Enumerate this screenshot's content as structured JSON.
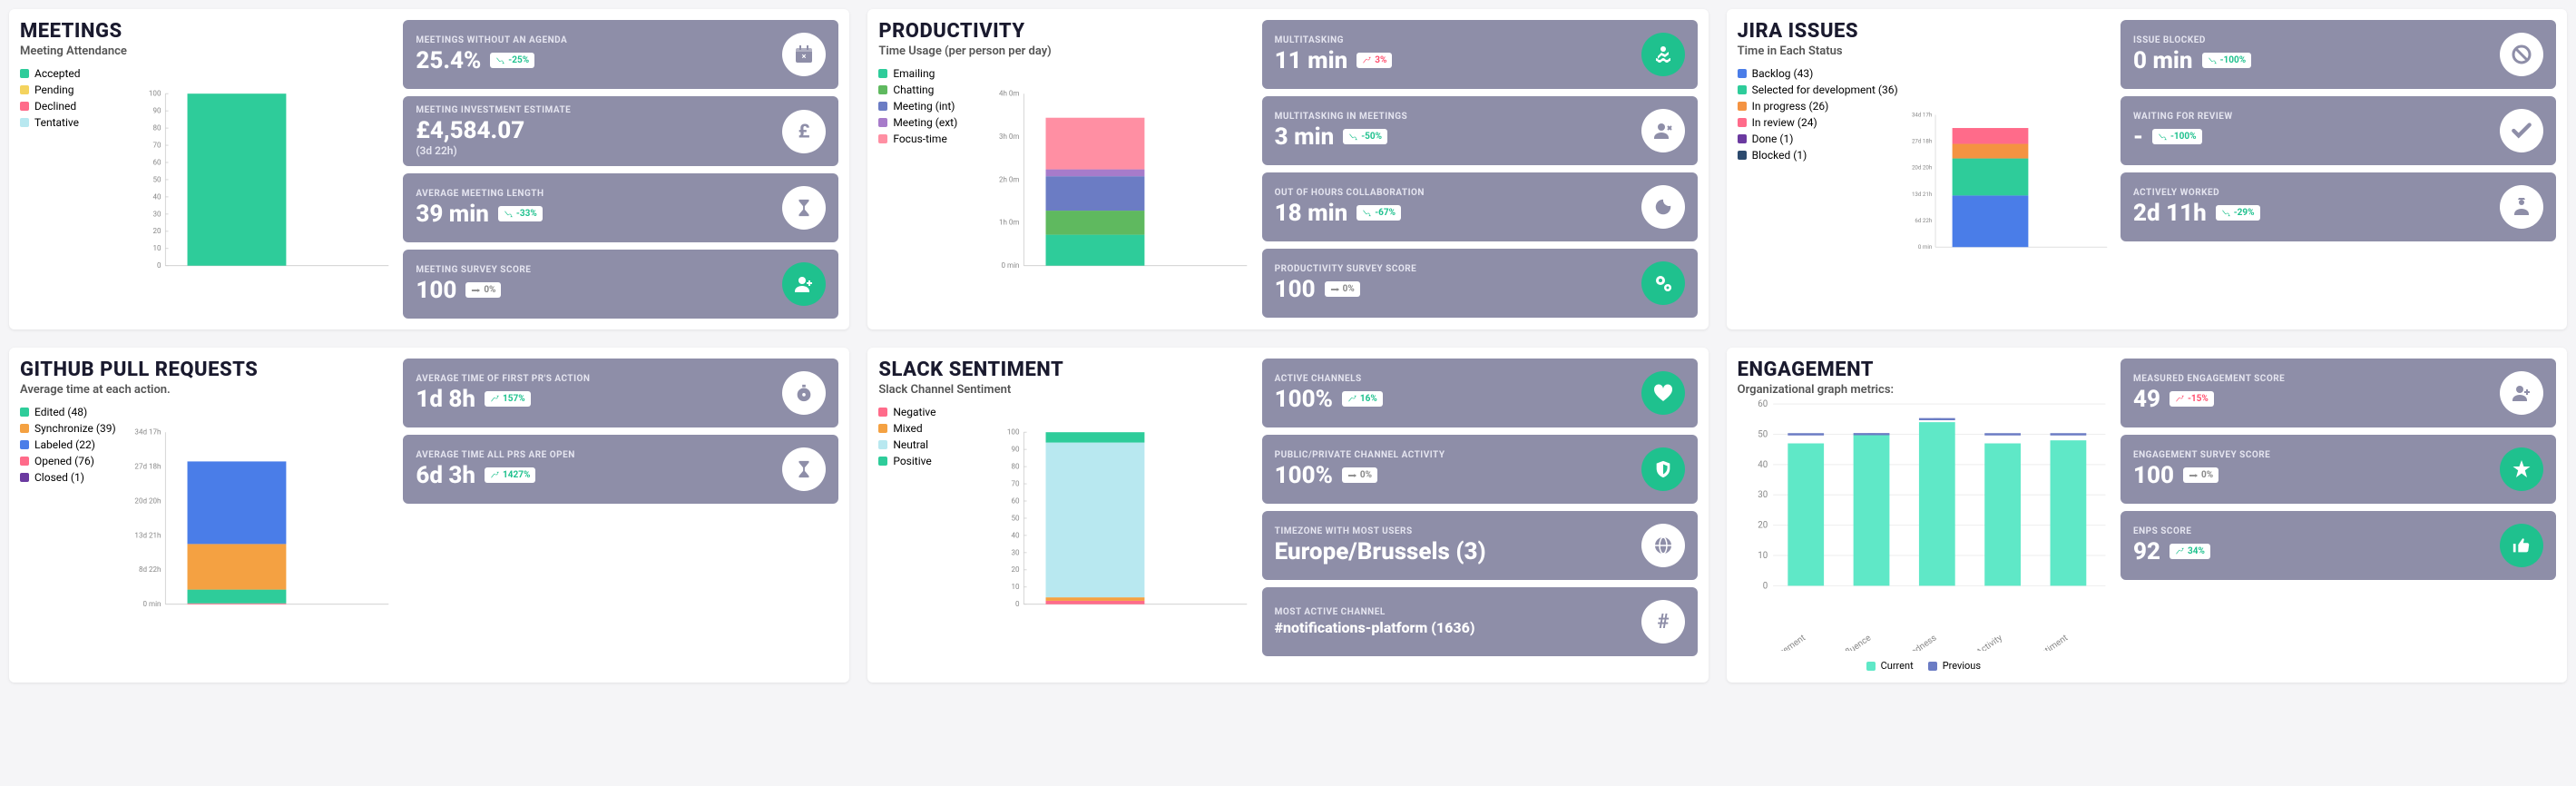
{
  "sections": [
    {
      "id": "meetings",
      "title": "MEETINGS",
      "subtitle": "Meeting Attendance",
      "chart": {
        "type": "bar",
        "legend": [
          {
            "label": "Accepted",
            "color": "#2ecc9a"
          },
          {
            "label": "Pending",
            "color": "#f4d35e"
          },
          {
            "label": "Declined",
            "color": "#ff6b8a"
          },
          {
            "label": "Tentative",
            "color": "#b8e8f0"
          }
        ],
        "ymax": 100,
        "ytick": 10,
        "bars": [
          {
            "parts": [
              {
                "h": 100,
                "color": "#2ecc9a"
              }
            ]
          }
        ]
      },
      "stats": [
        {
          "label": "MEETINGS WITHOUT AN AGENDA",
          "value": "25.4%",
          "badge": {
            "text": "-25%",
            "dir": "down"
          },
          "icon": "calendar",
          "iconbg": "white"
        },
        {
          "label": "MEETING INVESTMENT ESTIMATE",
          "value": "£4,584.07",
          "note": "(3d 22h)",
          "icon": "pound",
          "iconbg": "white"
        },
        {
          "label": "AVERAGE MEETING LENGTH",
          "value": "39 min",
          "badge": {
            "text": "-33%",
            "dir": "down"
          },
          "icon": "hourglass",
          "iconbg": "white"
        },
        {
          "label": "MEETING SURVEY SCORE",
          "value": "100",
          "badge": {
            "text": "0%",
            "dir": "neutral"
          },
          "icon": "user-plus",
          "iconbg": "green"
        }
      ]
    },
    {
      "id": "productivity",
      "title": "PRODUCTIVITY",
      "subtitle": "Time Usage (per person per day)",
      "chart": {
        "type": "time-bar",
        "legend": [
          {
            "label": "Emailing",
            "color": "#2ecc9a"
          },
          {
            "label": "Chatting",
            "color": "#5fb95f"
          },
          {
            "label": "Meeting (int)",
            "color": "#6b7cc4"
          },
          {
            "label": "Meeting (ext)",
            "color": "#a77bca"
          },
          {
            "label": "Focus-time",
            "color": "#ff8fa3"
          }
        ],
        "ylabels": [
          "4h 0m",
          "3h 0m",
          "2h 0m",
          "1h 0m",
          "0 min"
        ],
        "bars": [
          {
            "parts": [
              {
                "h": 18,
                "color": "#2ecc9a"
              },
              {
                "h": 14,
                "color": "#5fb95f"
              },
              {
                "h": 20,
                "color": "#6b7cc4"
              },
              {
                "h": 4,
                "color": "#a77bca"
              },
              {
                "h": 30,
                "color": "#ff8fa3"
              }
            ]
          }
        ]
      },
      "stats": [
        {
          "label": "MULTITASKING",
          "value": "11 min",
          "badge": {
            "text": "3%",
            "dir": "up"
          },
          "icon": "swimmer",
          "iconbg": "green"
        },
        {
          "label": "MULTITASKING IN MEETINGS",
          "value": "3 min",
          "badge": {
            "text": "-50%",
            "dir": "down"
          },
          "icon": "user-x",
          "iconbg": "white"
        },
        {
          "label": "OUT OF HOURS COLLABORATION",
          "value": "18 min",
          "badge": {
            "text": "-67%",
            "dir": "down"
          },
          "icon": "moon",
          "iconbg": "white"
        },
        {
          "label": "PRODUCTIVITY SURVEY SCORE",
          "value": "100",
          "badge": {
            "text": "0%",
            "dir": "neutral"
          },
          "icon": "gears",
          "iconbg": "green"
        }
      ]
    },
    {
      "id": "jira",
      "title": "JIRA ISSUES",
      "subtitle": "Time in Each Status",
      "chart": {
        "type": "time-bar",
        "legend": [
          {
            "label": "Backlog (43)",
            "color": "#4a7de8"
          },
          {
            "label": "Selected for development (36)",
            "color": "#2ecc9a"
          },
          {
            "label": "In progress (26)",
            "color": "#f49342"
          },
          {
            "label": "In review (24)",
            "color": "#ff6b8a"
          },
          {
            "label": "Done (1)",
            "color": "#6b3aa0"
          },
          {
            "label": "Blocked (1)",
            "color": "#2c4a6e"
          }
        ],
        "ylabels": [
          "34d 17h",
          "27d 18h",
          "20d 20h",
          "13d 21h",
          "6d 22h",
          "0 min"
        ],
        "bars": [
          {
            "parts": [
              {
                "h": 39,
                "color": "#4a7de8"
              },
              {
                "h": 28,
                "color": "#2ecc9a"
              },
              {
                "h": 11,
                "color": "#f49342"
              },
              {
                "h": 12,
                "color": "#ff6b8a"
              }
            ]
          }
        ]
      },
      "stats": [
        {
          "label": "ISSUE BLOCKED",
          "value": "0 min",
          "badge": {
            "text": "-100%",
            "dir": "down"
          },
          "icon": "ban",
          "iconbg": "white"
        },
        {
          "label": "WAITING FOR REVIEW",
          "value": "-",
          "badge": {
            "text": "-100%",
            "dir": "down"
          },
          "icon": "check",
          "iconbg": "white"
        },
        {
          "label": "ACTIVELY WORKED",
          "value": "2d 11h",
          "badge": {
            "text": "-29%",
            "dir": "down"
          },
          "icon": "worker",
          "iconbg": "white"
        }
      ]
    },
    {
      "id": "github",
      "title": "GITHUB PULL REQUESTS",
      "subtitle": "Average time at each action.",
      "chart": {
        "type": "time-bar",
        "legend": [
          {
            "label": "Edited (48)",
            "color": "#2ecc9a"
          },
          {
            "label": "Synchronize (39)",
            "color": "#f4a142"
          },
          {
            "label": "Labeled (22)",
            "color": "#4a7de8"
          },
          {
            "label": "Opened (76)",
            "color": "#ff6b8a"
          },
          {
            "label": "Closed (1)",
            "color": "#6b3aa0"
          }
        ],
        "ylabels": [
          "34d 17h",
          "27d 18h",
          "20d 20h",
          "13d 21h",
          "8d 22h",
          "0 min"
        ],
        "bars": [
          {
            "parts": [
              {
                "h": 0.5,
                "color": "#ff6b8a"
              },
              {
                "h": 8,
                "color": "#2ecc9a"
              },
              {
                "h": 26.5,
                "color": "#f4a142"
              },
              {
                "h": 48,
                "color": "#4a7de8"
              }
            ]
          }
        ]
      },
      "stats": [
        {
          "label": "AVERAGE TIME OF FIRST PR'S ACTION",
          "value": "1d 8h",
          "badge": {
            "text": "157%",
            "dir": "up-green"
          },
          "icon": "stopwatch",
          "iconbg": "white"
        },
        {
          "label": "AVERAGE TIME ALL PRS ARE OPEN",
          "value": "6d 3h",
          "badge": {
            "text": "1427%",
            "dir": "up-green"
          },
          "icon": "hourglass",
          "iconbg": "white"
        }
      ]
    },
    {
      "id": "slack",
      "title": "SLACK SENTIMENT",
      "subtitle": "Slack Channel Sentiment",
      "chart": {
        "type": "bar",
        "legend": [
          {
            "label": "Negative",
            "color": "#ff6b8a"
          },
          {
            "label": "Mixed",
            "color": "#f4a142"
          },
          {
            "label": "Neutral",
            "color": "#b8e8f0"
          },
          {
            "label": "Positive",
            "color": "#2ecc9a"
          }
        ],
        "ymax": 100,
        "ytick": 10,
        "bars": [
          {
            "parts": [
              {
                "h": 2,
                "color": "#ff6b8a"
              },
              {
                "h": 2,
                "color": "#f4a142"
              },
              {
                "h": 90,
                "color": "#b8e8f0"
              },
              {
                "h": 6,
                "color": "#2ecc9a"
              }
            ]
          }
        ]
      },
      "stats": [
        {
          "label": "ACTIVE CHANNELS",
          "value": "100%",
          "badge": {
            "text": "16%",
            "dir": "up-green"
          },
          "icon": "heart",
          "iconbg": "green"
        },
        {
          "label": "PUBLIC/PRIVATE CHANNEL ACTIVITY",
          "value": "100%",
          "badge": {
            "text": "0%",
            "dir": "neutral"
          },
          "icon": "shield",
          "iconbg": "green"
        },
        {
          "label": "TIMEZONE WITH MOST USERS",
          "value": "Europe/Brussels (3)",
          "icon": "globe",
          "iconbg": "white"
        },
        {
          "label": "MOST ACTIVE CHANNEL",
          "value": "#notifications-platform (1636)",
          "icon": "hash",
          "iconbg": "white",
          "small": true
        }
      ]
    },
    {
      "id": "engagement",
      "title": "ENGAGEMENT",
      "subtitle": "Organizational graph metrics:",
      "engagement_chart": {
        "ymax": 60,
        "ytick": 10,
        "categories": [
          "Engagement",
          "Influence",
          "Connectedness",
          "Activity",
          "Sentiment"
        ],
        "bars": [
          47,
          50,
          54,
          47,
          48
        ],
        "bar_color": "#5fe8c7",
        "prev": [
          50,
          50.05,
          55,
          50,
          50
        ],
        "prev_color": "#6b7cc4"
      },
      "eng_legend": [
        {
          "label": "Current",
          "color": "#5fe8c7"
        },
        {
          "label": "Previous",
          "color": "#6b7cc4"
        }
      ],
      "stats": [
        {
          "label": "MEASURED ENGAGEMENT SCORE",
          "value": "49",
          "badge": {
            "text": "-15%",
            "dir": "up"
          },
          "icon": "user-plus",
          "iconbg": "white"
        },
        {
          "label": "ENGAGEMENT SURVEY SCORE",
          "value": "100",
          "badge": {
            "text": "0%",
            "dir": "neutral"
          },
          "icon": "star",
          "iconbg": "green"
        },
        {
          "label": "ENPS SCORE",
          "value": "92",
          "badge": {
            "text": "34%",
            "dir": "up-green"
          },
          "icon": "thumbs-up",
          "iconbg": "green"
        }
      ]
    }
  ]
}
